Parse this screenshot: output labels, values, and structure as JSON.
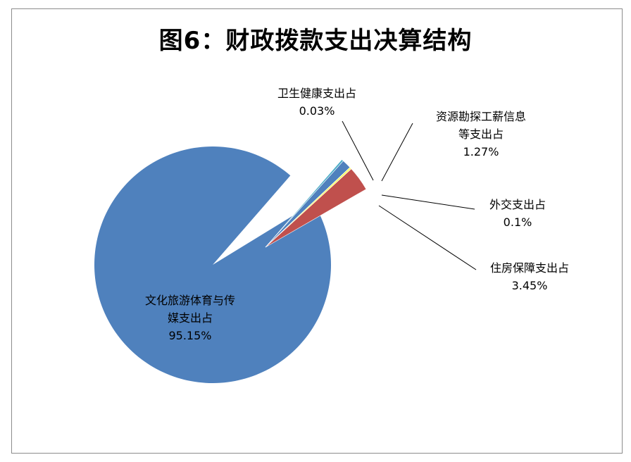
{
  "chart_data": {
    "type": "pie",
    "title": "图6：财政拨款支出决算结构",
    "slices": [
      {
        "label_lines": [
          "文化旅游体育与传",
          "媒支出占"
        ],
        "value_label": "95.15%",
        "value": 95.15,
        "color": "#4f81bd",
        "exploded": false
      },
      {
        "label_lines": [
          "卫生健康支出占"
        ],
        "value_label": "0.03%",
        "value": 0.03,
        "color": "#4bacc6",
        "exploded": true
      },
      {
        "label_lines": [
          "资源勘探工薪信息",
          "等支出占"
        ],
        "value_label": "1.27%",
        "value": 1.27,
        "color": "#4f81bd",
        "exploded": true
      },
      {
        "label_lines": [
          "外交支出占"
        ],
        "value_label": "0.1%",
        "value": 0.1,
        "color": "#ffff66",
        "exploded": true
      },
      {
        "label_lines": [
          "住房保障支出占"
        ],
        "value_label": "3.45%",
        "value": 3.45,
        "color": "#c0504d",
        "exploded": true
      }
    ]
  }
}
